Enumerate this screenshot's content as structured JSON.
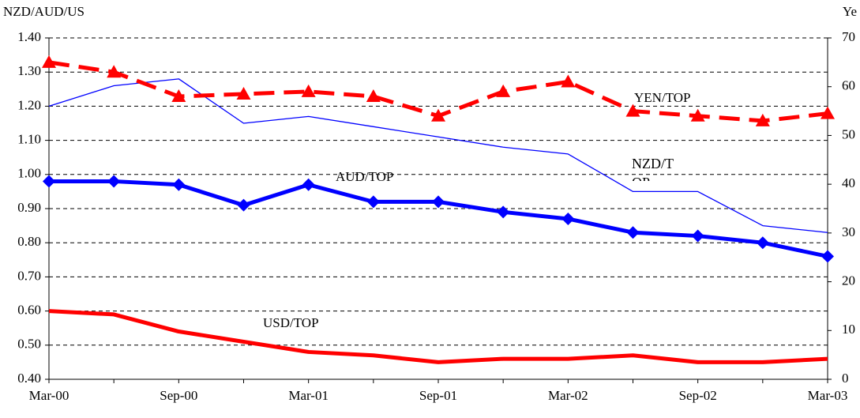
{
  "chart_data": {
    "type": "line",
    "ylabel": "NZD/AUD/US",
    "y2label": "Ye",
    "categories": [
      "Mar-00",
      null,
      "Sep-00",
      null,
      "Mar-01",
      null,
      "Sep-01",
      null,
      "Mar-02",
      null,
      "Sep-02",
      null,
      "Mar-03"
    ],
    "ylim": [
      0.4,
      1.4
    ],
    "yticks": [
      {
        "value": 1.4,
        "label": "1.40"
      },
      {
        "value": 1.3,
        "label": "1.30"
      },
      {
        "value": 1.2,
        "label": "1.20"
      },
      {
        "value": 1.1,
        "label": "1.10"
      },
      {
        "value": 1.0,
        "label": "1.00"
      },
      {
        "value": 0.9,
        "label": "0.90"
      },
      {
        "value": 0.8,
        "label": "0.80"
      },
      {
        "value": 0.7,
        "label": "0.70"
      },
      {
        "value": 0.6,
        "label": "0.60"
      },
      {
        "value": 0.5,
        "label": "0.50"
      },
      {
        "value": 0.4,
        "label": "0.40"
      }
    ],
    "y2lim": [
      0,
      70
    ],
    "y2ticks": [
      70,
      60,
      50,
      40,
      30,
      20,
      10,
      0
    ],
    "grid": true,
    "series": [
      {
        "name": "AUD/TOP",
        "color": "#0000ff",
        "marker": "diamond",
        "width": 5,
        "values": [
          0.98,
          0.98,
          0.97,
          0.91,
          0.97,
          0.92,
          0.92,
          0.89,
          0.87,
          0.83,
          0.82,
          0.8,
          0.76
        ]
      },
      {
        "name": "NZD/TOP",
        "color": "#0000ff",
        "width": 1.3,
        "values": [
          1.2,
          1.26,
          1.28,
          1.15,
          1.17,
          1.14,
          1.11,
          1.08,
          1.06,
          0.95,
          0.95,
          0.85,
          0.83
        ]
      },
      {
        "name": "USD/TOP",
        "color": "#ff0000",
        "width": 5,
        "values": [
          0.6,
          0.59,
          0.54,
          0.51,
          0.48,
          0.47,
          0.45,
          0.46,
          0.46,
          0.47,
          0.45,
          0.45,
          0.46
        ]
      },
      {
        "name": "YEN/TOP",
        "color": "#ff0000",
        "marker": "triangle",
        "width": 5,
        "dashed": true,
        "axis": "y2",
        "values": [
          65,
          63,
          58,
          58.5,
          59,
          58,
          54,
          59,
          61,
          55,
          54,
          53,
          54.5
        ]
      }
    ]
  }
}
